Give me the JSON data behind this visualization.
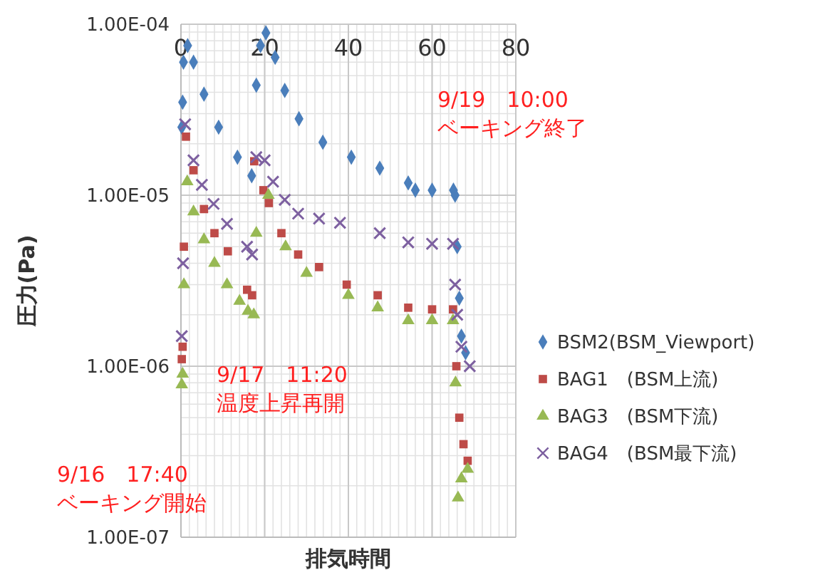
{
  "chart_data": {
    "type": "scatter",
    "xlabel": "排気時間",
    "ylabel": "圧力(Pa)",
    "log": "y",
    "grid": true,
    "legend": "right",
    "xlim": [
      0,
      80
    ],
    "xticks": [
      0,
      20,
      40,
      60,
      80
    ],
    "ylim": [
      1e-07,
      0.0001
    ],
    "yticks": [
      {
        "value": 1e-07,
        "label": "1.00E-07"
      },
      {
        "value": 1e-06,
        "label": "1.00E-06"
      },
      {
        "value": 1e-05,
        "label": "1.00E-05"
      },
      {
        "value": 0.0001,
        "label": "1.00E-04"
      }
    ],
    "annotations": [
      "9/19　10:00\nベーキング終了",
      "9/17　11:20\n温度上昇再開",
      "9/16　17:40\nベーキング開始"
    ],
    "series": [
      {
        "name": "BSM2(BSM_Viewport)",
        "color": "#4a7ebb",
        "marker": "diamond",
        "x": [
          0.2,
          0.4,
          0.6,
          1.6,
          3,
          5.5,
          9,
          13.5,
          16.9,
          18,
          19,
          20.3,
          22.5,
          24.8,
          28.2,
          33.9,
          40.7,
          47.5,
          54.3,
          56,
          60,
          65.1,
          65.5,
          66,
          66.5,
          67,
          68
        ],
        "values": [
          2.5e-05,
          3.5e-05,
          6e-05,
          7.5e-05,
          6e-05,
          3.9e-05,
          2.5e-05,
          1.67e-05,
          1.3e-05,
          4.4e-05,
          7.5e-05,
          8.9e-05,
          6.4e-05,
          4.1e-05,
          2.8e-05,
          2.04e-05,
          1.67e-05,
          1.44e-05,
          1.18e-05,
          1.07e-05,
          1.07e-05,
          1.07e-05,
          1e-05,
          5e-06,
          2.5e-06,
          1.5e-06,
          1.2e-06
        ]
      },
      {
        "name": "BAG1　(BSM上流)",
        "color": "#be4b48",
        "marker": "square",
        "x": [
          0.2,
          0.4,
          0.7,
          1.2,
          3,
          5.5,
          8,
          11.2,
          15.8,
          17,
          17.5,
          19.7,
          21,
          24,
          28,
          33,
          39.6,
          47,
          54.3,
          60,
          65,
          65.8,
          66.5,
          67.5,
          68.5
        ],
        "values": [
          1.1e-06,
          1.3e-06,
          5e-06,
          2.2e-05,
          1.4e-05,
          8.3e-06,
          6e-06,
          4.7e-06,
          2.8e-06,
          2.6e-06,
          1.58e-05,
          1.07e-05,
          9e-06,
          6e-06,
          4.5e-06,
          3.8e-06,
          3e-06,
          2.6e-06,
          2.2e-06,
          2.15e-06,
          2.15e-06,
          1e-06,
          5e-07,
          3.5e-07,
          2.8e-07
        ]
      },
      {
        "name": "BAG3　(BSM下流)",
        "color": "#98b954",
        "marker": "triangle",
        "x": [
          0.2,
          0.4,
          0.7,
          1.5,
          3,
          5.5,
          8,
          11,
          14,
          16,
          17.4,
          18,
          20.9,
          25,
          30,
          40,
          47,
          54.3,
          60,
          65,
          65.6,
          66.2,
          67,
          68.5
        ],
        "values": [
          7.8e-07,
          9e-07,
          3e-06,
          1.2e-05,
          8e-06,
          5.5e-06,
          4e-06,
          3e-06,
          2.4e-06,
          2.1e-06,
          2e-06,
          6e-06,
          1e-05,
          5e-06,
          3.5e-06,
          2.6e-06,
          2.2e-06,
          1.85e-06,
          1.85e-06,
          1.85e-06,
          8e-07,
          1.7e-07,
          2.2e-07,
          2.5e-07
        ]
      },
      {
        "name": "BAG4　(BSM最下流)",
        "color": "#7d60a0",
        "marker": "cross",
        "x": [
          0.2,
          0.5,
          1,
          3,
          5,
          7.8,
          11,
          15.8,
          17,
          18,
          20,
          22,
          24.8,
          28,
          33,
          38,
          47.5,
          54.3,
          60,
          65,
          65.5,
          66,
          67,
          69
        ],
        "values": [
          1.5e-06,
          4e-06,
          2.6e-05,
          1.6e-05,
          1.15e-05,
          8.9e-06,
          6.8e-06,
          5e-06,
          4.5e-06,
          1.67e-05,
          1.6e-05,
          1.2e-05,
          9.4e-06,
          7.8e-06,
          7.3e-06,
          6.9e-06,
          6e-06,
          5.3e-06,
          5.2e-06,
          5.2e-06,
          3e-06,
          2e-06,
          1.3e-06,
          1e-06
        ]
      }
    ]
  }
}
